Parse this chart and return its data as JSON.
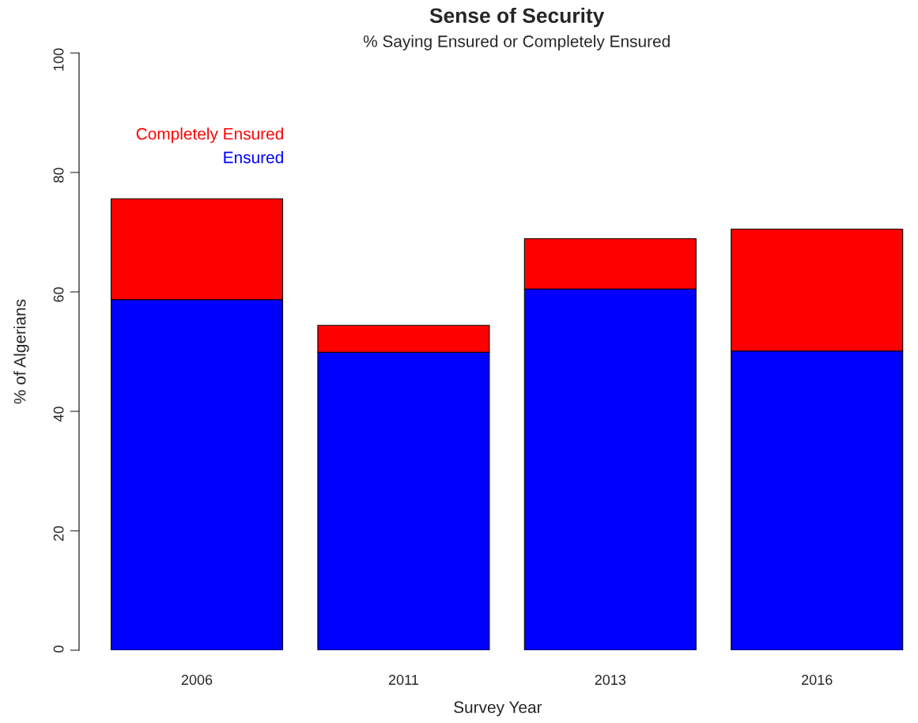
{
  "chart_data": {
    "type": "bar",
    "title": "Sense of Security",
    "subtitle": "% Saying Ensured or Completely Ensured",
    "xlabel": "Survey Year",
    "ylabel": "% of Algerians",
    "categories": [
      "2006",
      "2011",
      "2013",
      "2016"
    ],
    "stacked": true,
    "series": [
      {
        "name": "Ensured",
        "color": "#0000ff",
        "values": [
          58.7,
          49.9,
          60.5,
          50.1
        ]
      },
      {
        "name": "Completely Ensured",
        "color": "#ff0000",
        "values": [
          16.9,
          4.5,
          8.4,
          20.4
        ]
      }
    ],
    "ylim": [
      0,
      100
    ],
    "yticks": [
      0,
      20,
      40,
      60,
      80,
      100
    ],
    "grid": false,
    "legend": "top left"
  }
}
